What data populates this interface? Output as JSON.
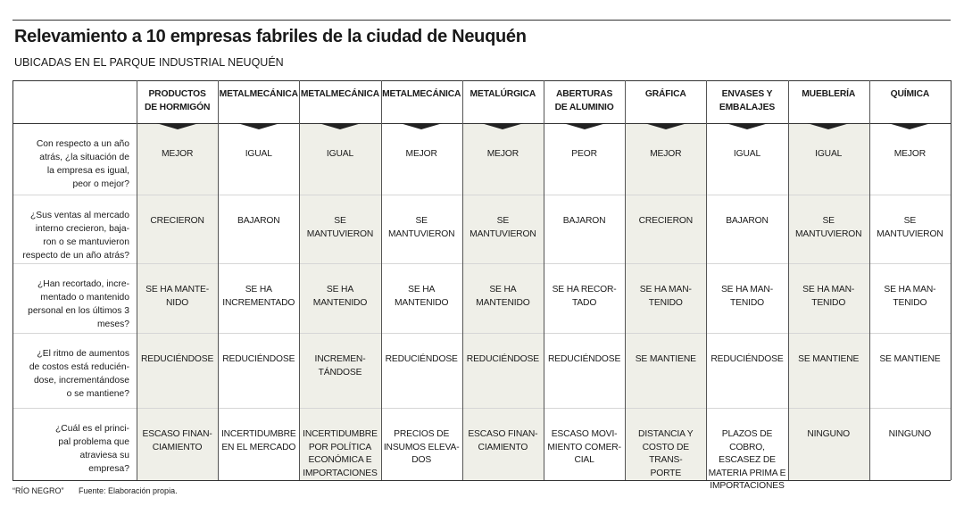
{
  "header": {
    "title": "Relevamiento a 10 empresas fabriles de la ciudad de Neuquén",
    "subtitle": "UBICADAS EN EL PARQUE INDUSTRIAL NEUQUÉN"
  },
  "table": {
    "columns": [
      "PRODUCTOS\nDE HORMIGÓN",
      "METALMECÁNICA",
      "METALMECÁNICA",
      "METALMECÁNICA",
      "METALÚRGICA",
      "ABERTURAS\nDE ALUMINIO",
      "GRÁFICA",
      "ENVASES Y\nEMBALAJES",
      "MUEBLERÍA",
      "QUÍMICA"
    ],
    "rows": [
      {
        "question": "Con respecto a un año\natrás, ¿la situación de\nla empresa es igual,\npeor o mejor?",
        "answers": [
          "MEJOR",
          "IGUAL",
          "IGUAL",
          "MEJOR",
          "MEJOR",
          "PEOR",
          "MEJOR",
          "IGUAL",
          "IGUAL",
          "MEJOR"
        ]
      },
      {
        "question": "¿Sus ventas al mercado\ninterno crecieron, baja-\nron o se mantuvieron\nrespecto de un año atrás?",
        "answers": [
          "CRECIERON",
          "BAJARON",
          "SE\nMANTUVIERON",
          "SE\nMANTUVIERON",
          "SE\nMANTUVIERON",
          "BAJARON",
          "CRECIERON",
          "BAJARON",
          "SE\nMANTUVIERON",
          "SE\nMANTUVIERON"
        ]
      },
      {
        "question": "¿Han recortado, incre-\nmentado o mantenido\npersonal en los últimos 3\nmeses?",
        "answers": [
          "SE HA MANTE-\nNIDO",
          "SE HA\nINCREMENTADO",
          "SE HA\nMANTENIDO",
          "SE HA\nMANTENIDO",
          "SE HA\nMANTENIDO",
          "SE HA RECOR-\nTADO",
          "SE HA MAN-\nTENIDO",
          "SE HA MAN-\nTENIDO",
          "SE HA MAN-\nTENIDO",
          "SE HA MAN-\nTENIDO"
        ]
      },
      {
        "question": "¿El ritmo de aumentos\nde costos está reducién-\ndose, incrementándose\no se mantiene?",
        "answers": [
          "REDUCIÉNDOSE",
          "REDUCIÉNDOSE",
          "INCREMEN-\nTÁNDOSE",
          "REDUCIÉNDOSE",
          "REDUCIÉNDOSE",
          "REDUCIÉNDOSE",
          "SE MANTIENE",
          "REDUCIÉNDOSE",
          "SE MANTIENE",
          "SE MANTIENE"
        ]
      },
      {
        "question": "¿Cuál es el princi-\npal problema que\natraviesa su\nempresa?",
        "answers": [
          "ESCASO FINAN-\nCIAMIENTO",
          "INCERTIDUMBRE\nEN EL MERCADO",
          "INCERTIDUMBRE\nPOR POLÍTICA\nECONÓMICA E\nIMPORTACIONES",
          "PRECIOS DE\nINSUMOS ELEVA-\nDOS",
          "ESCASO FINAN-\nCIAMIENTO",
          "ESCASO MOVI-\nMIENTO COMER-\nCIAL",
          "DISTANCIA Y\nCOSTO DE TRANS-\nPORTE",
          "PLAZOS DE COBRO,\nESCASEZ DE\nMATERIA PRIMA E\nIMPORTACIONES",
          "NINGUNO",
          "NINGUNO"
        ]
      }
    ]
  },
  "footer": {
    "credit": "“RÍO NEGRO”",
    "source": "Fuente: Elaboración propia."
  }
}
